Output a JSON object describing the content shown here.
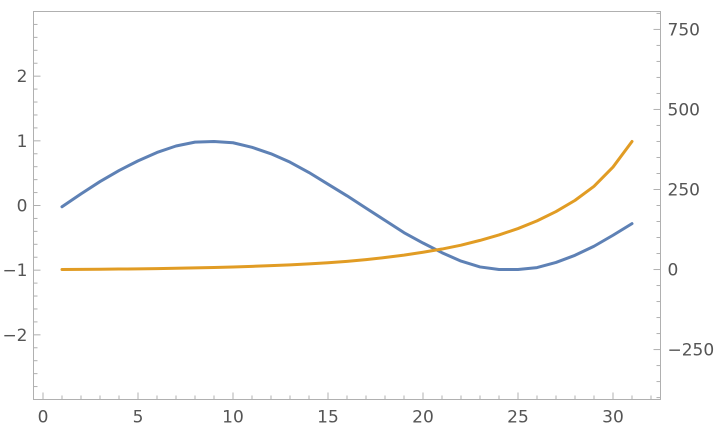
{
  "chart_data": {
    "type": "line",
    "title": "",
    "xlabel": "",
    "ylabel": "",
    "y2label": "",
    "xlim": [
      -0.5,
      32.5
    ],
    "ylim": [
      -3,
      3
    ],
    "y2lim": [
      -406,
      806
    ],
    "x_ticks": [
      0,
      5,
      10,
      15,
      20,
      25,
      30
    ],
    "x_tick_labels": [
      "0",
      "5",
      "10",
      "15",
      "20",
      "25",
      "30"
    ],
    "y_ticks": [
      -2,
      -1,
      0,
      1,
      2
    ],
    "y_tick_labels": [
      "−2",
      "−1",
      "0",
      "1",
      "2"
    ],
    "y2_ticks": [
      -250,
      0,
      250,
      500,
      750
    ],
    "y2_tick_labels": [
      "−250",
      "0",
      "250",
      "500",
      "750"
    ],
    "grid": false,
    "legend": "none",
    "series": [
      {
        "axis": "left",
        "color": "#5e81b5",
        "x": [
          1,
          2,
          3,
          4,
          5,
          6,
          7,
          8,
          9,
          10,
          11,
          12,
          13,
          14,
          15,
          16,
          17,
          18,
          19,
          20,
          21,
          22,
          23,
          24,
          25,
          26,
          27,
          28,
          29,
          30,
          31
        ],
        "values": [
          -0.02,
          0.18,
          0.37,
          0.54,
          0.69,
          0.82,
          0.92,
          0.98,
          0.99,
          0.97,
          0.9,
          0.8,
          0.67,
          0.51,
          0.33,
          0.15,
          -0.04,
          -0.23,
          -0.42,
          -0.58,
          -0.73,
          -0.86,
          -0.95,
          -0.99,
          -0.99,
          -0.96,
          -0.88,
          -0.77,
          -0.63,
          -0.46,
          -0.28
        ]
      },
      {
        "axis": "right",
        "color": "#e19c24",
        "x": [
          1,
          2,
          3,
          4,
          5,
          6,
          7,
          8,
          9,
          10,
          11,
          12,
          13,
          14,
          15,
          16,
          17,
          18,
          19,
          20,
          21,
          22,
          23,
          24,
          25,
          26,
          27,
          28,
          29,
          30,
          31
        ],
        "values": [
          0,
          0.4,
          0.9,
          1.5,
          2.2,
          3,
          4,
          5,
          6.5,
          8,
          10,
          12,
          14.5,
          17.5,
          21,
          25.5,
          31,
          37.5,
          45,
          54,
          64,
          76,
          91,
          108,
          128,
          152,
          181,
          216,
          260,
          320,
          400
        ]
      }
    ]
  }
}
